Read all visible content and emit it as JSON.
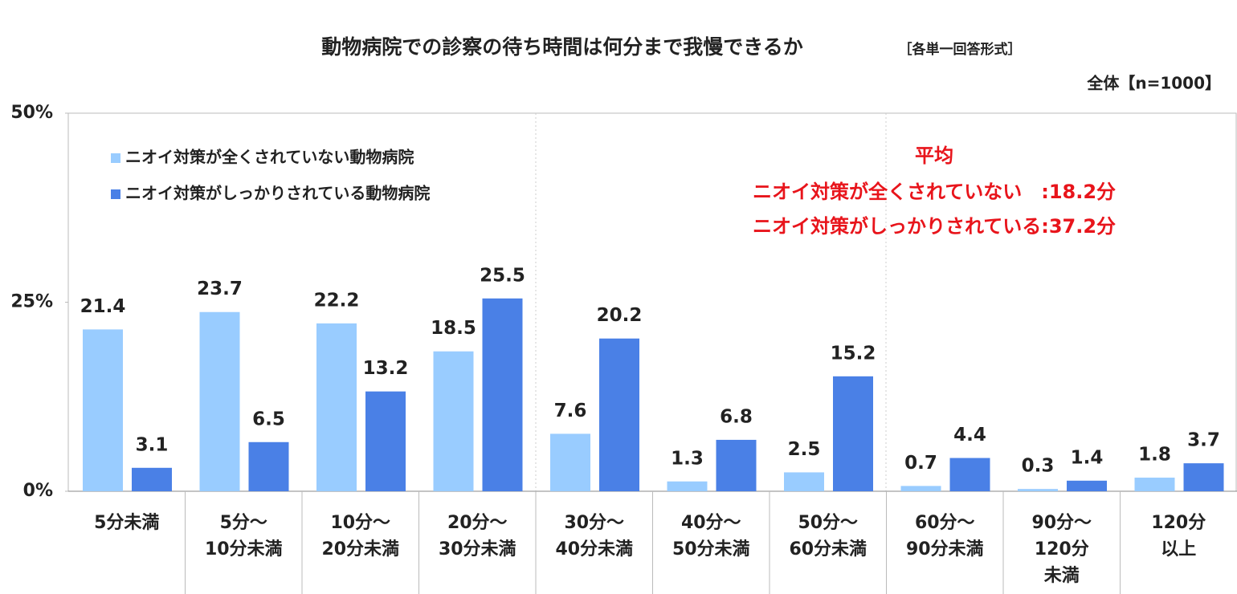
{
  "chart_data": {
    "type": "bar",
    "title": "動物病院での診察の待ち時間は何分まで我慢できるか",
    "subtitle": "［各単一回答形式］",
    "note": "全体【n=1000】",
    "annotations": [
      "平均",
      "ニオイ対策が全くされていない　:18.2分",
      "ニオイ対策がしっかりされている:37.2分"
    ],
    "categories": [
      [
        "5分未満"
      ],
      [
        "5分～",
        "10分未満"
      ],
      [
        "10分～",
        "20分未満"
      ],
      [
        "20分～",
        "30分未満"
      ],
      [
        "30分～",
        "40分未満"
      ],
      [
        "40分～",
        "50分未満"
      ],
      [
        "50分～",
        "60分未満"
      ],
      [
        "60分～",
        "90分未満"
      ],
      [
        "90分～",
        "120分",
        "未満"
      ],
      [
        "120分",
        "以上"
      ]
    ],
    "series": [
      {
        "name": "ニオイ対策が全くされていない動物病院",
        "color": "#99ccff",
        "values": [
          21.4,
          23.7,
          22.2,
          18.5,
          7.6,
          1.3,
          2.5,
          0.7,
          0.3,
          1.8
        ]
      },
      {
        "name": "ニオイ対策がしっかりされている動物病院",
        "color": "#4a80e6",
        "values": [
          3.1,
          6.5,
          13.2,
          25.5,
          20.2,
          6.8,
          15.2,
          4.4,
          1.4,
          3.7
        ]
      }
    ],
    "ylim": [
      0,
      50
    ],
    "yticks": [
      {
        "value": 0,
        "label": "0%"
      },
      {
        "value": 25,
        "label": "25%"
      },
      {
        "value": 50,
        "label": "50%"
      }
    ],
    "legend": "upper left"
  }
}
